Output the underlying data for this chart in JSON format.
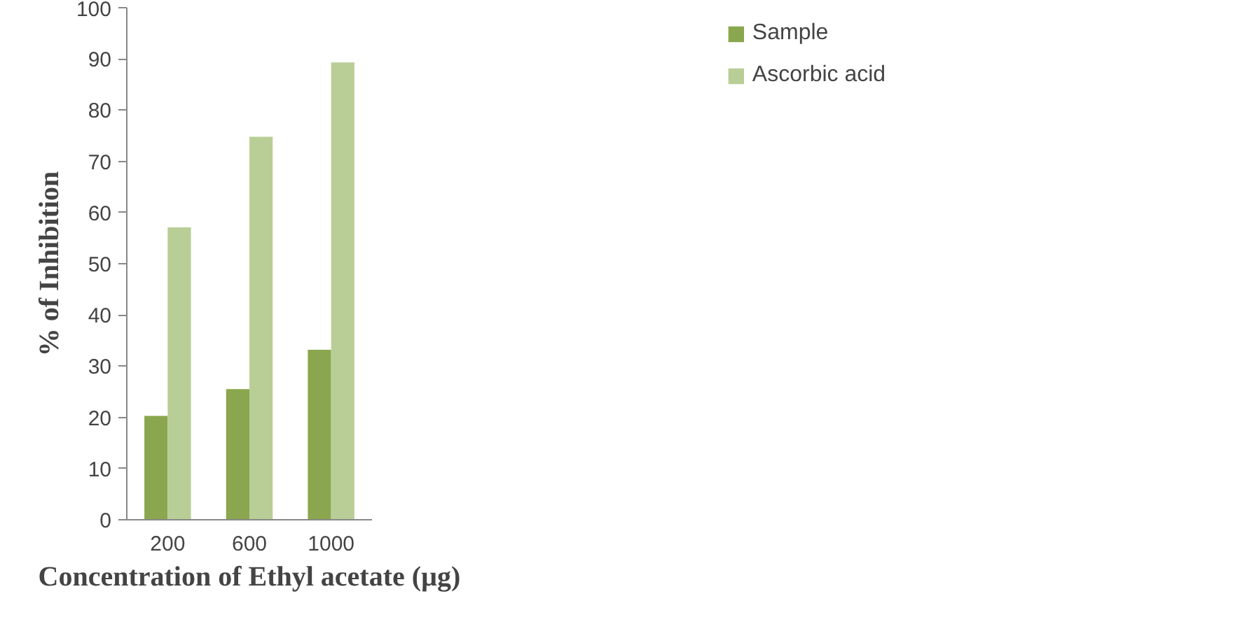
{
  "chart_data": {
    "type": "bar",
    "xlabel": "Concentration of Ethyl acetate (µg)",
    "ylabel": "% of Inhibition",
    "categories": [
      "200",
      "600",
      "1000"
    ],
    "series": [
      {
        "name": "Sample",
        "color": "#8aa64e",
        "values": [
          20.3,
          25.5,
          33.2
        ]
      },
      {
        "name": "Ascorbic acid",
        "color": "#b9ce96",
        "values": [
          57.1,
          74.8,
          89.3
        ]
      }
    ],
    "ylim": [
      0,
      100
    ],
    "yticks": [
      0,
      10,
      20,
      30,
      40,
      50,
      60,
      70,
      80,
      90,
      100
    ],
    "grid": false,
    "legend": "right"
  }
}
